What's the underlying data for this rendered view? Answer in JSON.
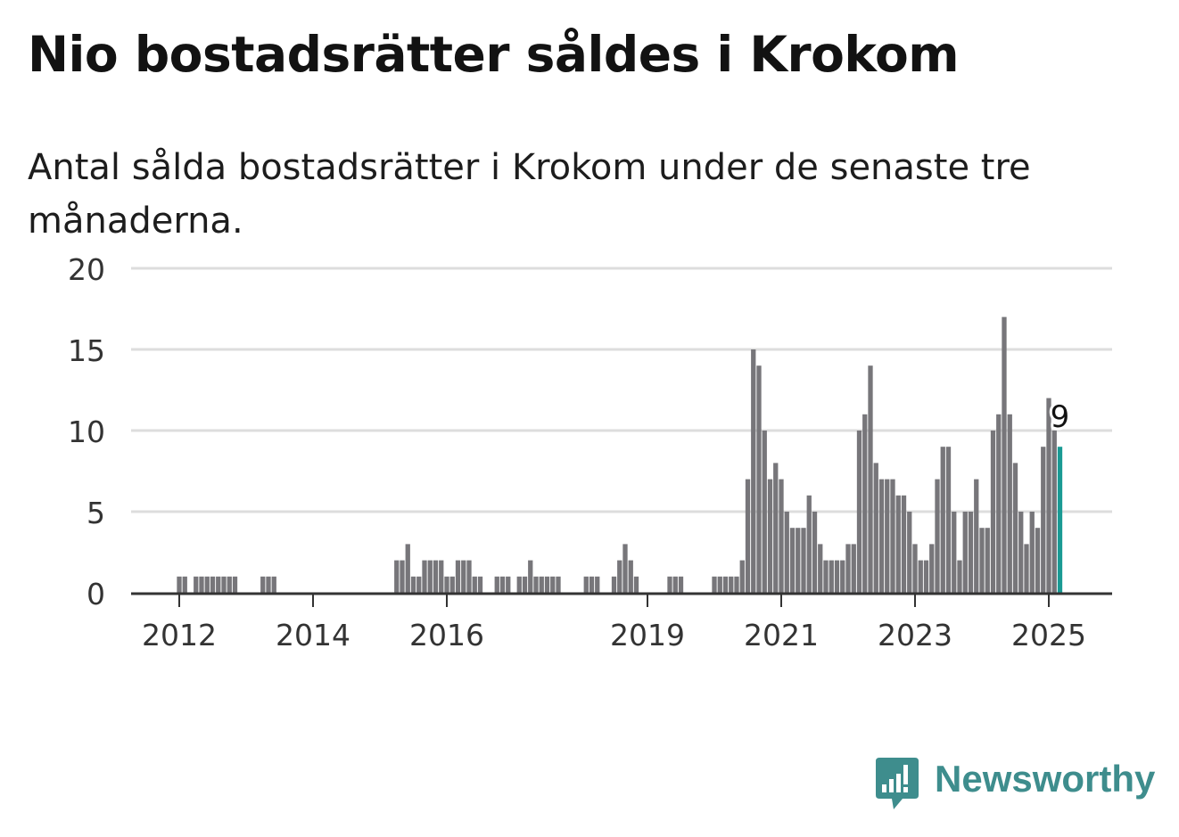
{
  "title": "Nio bostadsrätter såldes i Krokom",
  "subtitle": "Antal sålda bostadsrätter i Krokom under de senaste tre månaderna.",
  "brand": {
    "name": "Newsworthy",
    "icon": "newsworthy-logo-icon",
    "color": "#3e8d8d"
  },
  "colors": {
    "bar": "#77767a",
    "highlight": "#1a9a94",
    "grid": "#dddddd",
    "axis": "#333333"
  },
  "chart_data": {
    "type": "bar",
    "title": "Nio bostadsrätter såldes i Krokom",
    "xlabel": "",
    "ylabel": "",
    "ylim": [
      0,
      20
    ],
    "y_ticks": [
      "0",
      "5",
      "10",
      "15",
      "20"
    ],
    "x_ticks": [
      {
        "date": "2012-01",
        "label": "2012"
      },
      {
        "date": "2014-01",
        "label": "2014"
      },
      {
        "date": "2016-01",
        "label": "2016"
      },
      {
        "date": "2019-01",
        "label": "2019"
      },
      {
        "date": "2021-01",
        "label": "2021"
      },
      {
        "date": "2023-01",
        "label": "2023"
      },
      {
        "date": "2025-01",
        "label": "2025"
      }
    ],
    "grid": true,
    "highlight": {
      "date": "2025-03",
      "value": 9,
      "label": "9"
    },
    "series": [
      {
        "data": [
          [
            "2011-11",
            0
          ],
          [
            "2011-12",
            0
          ],
          [
            "2012-01",
            1
          ],
          [
            "2012-02",
            1
          ],
          [
            "2012-03",
            0
          ],
          [
            "2012-04",
            1
          ],
          [
            "2012-05",
            1
          ],
          [
            "2012-06",
            1
          ],
          [
            "2012-07",
            1
          ],
          [
            "2012-08",
            1
          ],
          [
            "2012-09",
            1
          ],
          [
            "2012-10",
            1
          ],
          [
            "2012-11",
            1
          ],
          [
            "2012-12",
            0
          ],
          [
            "2013-01",
            0
          ],
          [
            "2013-02",
            0
          ],
          [
            "2013-03",
            0
          ],
          [
            "2013-04",
            1
          ],
          [
            "2013-05",
            1
          ],
          [
            "2013-06",
            1
          ],
          [
            "2013-07",
            0
          ],
          [
            "2013-08",
            0
          ],
          [
            "2013-09",
            0
          ],
          [
            "2013-10",
            0
          ],
          [
            "2013-11",
            0
          ],
          [
            "2013-12",
            0
          ],
          [
            "2014-01",
            0
          ],
          [
            "2014-02",
            0
          ],
          [
            "2014-03",
            0
          ],
          [
            "2014-04",
            0
          ],
          [
            "2014-05",
            0
          ],
          [
            "2014-06",
            0
          ],
          [
            "2014-07",
            0
          ],
          [
            "2014-08",
            0
          ],
          [
            "2014-09",
            0
          ],
          [
            "2014-10",
            0
          ],
          [
            "2014-11",
            0
          ],
          [
            "2014-12",
            0
          ],
          [
            "2015-01",
            0
          ],
          [
            "2015-02",
            0
          ],
          [
            "2015-03",
            0
          ],
          [
            "2015-04",
            2
          ],
          [
            "2015-05",
            2
          ],
          [
            "2015-06",
            3
          ],
          [
            "2015-07",
            1
          ],
          [
            "2015-08",
            1
          ],
          [
            "2015-09",
            2
          ],
          [
            "2015-10",
            2
          ],
          [
            "2015-11",
            2
          ],
          [
            "2015-12",
            2
          ],
          [
            "2016-01",
            1
          ],
          [
            "2016-02",
            1
          ],
          [
            "2016-03",
            2
          ],
          [
            "2016-04",
            2
          ],
          [
            "2016-05",
            2
          ],
          [
            "2016-06",
            1
          ],
          [
            "2016-07",
            1
          ],
          [
            "2016-08",
            0
          ],
          [
            "2016-09",
            0
          ],
          [
            "2016-10",
            1
          ],
          [
            "2016-11",
            1
          ],
          [
            "2016-12",
            1
          ],
          [
            "2017-01",
            0
          ],
          [
            "2017-02",
            1
          ],
          [
            "2017-03",
            1
          ],
          [
            "2017-04",
            2
          ],
          [
            "2017-05",
            1
          ],
          [
            "2017-06",
            1
          ],
          [
            "2017-07",
            1
          ],
          [
            "2017-08",
            1
          ],
          [
            "2017-09",
            1
          ],
          [
            "2017-10",
            0
          ],
          [
            "2017-11",
            0
          ],
          [
            "2017-12",
            0
          ],
          [
            "2018-01",
            0
          ],
          [
            "2018-02",
            1
          ],
          [
            "2018-03",
            1
          ],
          [
            "2018-04",
            1
          ],
          [
            "2018-05",
            0
          ],
          [
            "2018-06",
            0
          ],
          [
            "2018-07",
            1
          ],
          [
            "2018-08",
            2
          ],
          [
            "2018-09",
            3
          ],
          [
            "2018-10",
            2
          ],
          [
            "2018-11",
            1
          ],
          [
            "2018-12",
            0
          ],
          [
            "2019-01",
            0
          ],
          [
            "2019-02",
            0
          ],
          [
            "2019-03",
            0
          ],
          [
            "2019-04",
            0
          ],
          [
            "2019-05",
            1
          ],
          [
            "2019-06",
            1
          ],
          [
            "2019-07",
            1
          ],
          [
            "2019-08",
            0
          ],
          [
            "2019-09",
            0
          ],
          [
            "2019-10",
            0
          ],
          [
            "2019-11",
            0
          ],
          [
            "2019-12",
            0
          ],
          [
            "2020-01",
            1
          ],
          [
            "2020-02",
            1
          ],
          [
            "2020-03",
            1
          ],
          [
            "2020-04",
            1
          ],
          [
            "2020-05",
            1
          ],
          [
            "2020-06",
            2
          ],
          [
            "2020-07",
            7
          ],
          [
            "2020-08",
            15
          ],
          [
            "2020-09",
            14
          ],
          [
            "2020-10",
            10
          ],
          [
            "2020-11",
            7
          ],
          [
            "2020-12",
            8
          ],
          [
            "2021-01",
            7
          ],
          [
            "2021-02",
            5
          ],
          [
            "2021-03",
            4
          ],
          [
            "2021-04",
            4
          ],
          [
            "2021-05",
            4
          ],
          [
            "2021-06",
            6
          ],
          [
            "2021-07",
            5
          ],
          [
            "2021-08",
            3
          ],
          [
            "2021-09",
            2
          ],
          [
            "2021-10",
            2
          ],
          [
            "2021-11",
            2
          ],
          [
            "2021-12",
            2
          ],
          [
            "2022-01",
            3
          ],
          [
            "2022-02",
            3
          ],
          [
            "2022-03",
            10
          ],
          [
            "2022-04",
            11
          ],
          [
            "2022-05",
            14
          ],
          [
            "2022-06",
            8
          ],
          [
            "2022-07",
            7
          ],
          [
            "2022-08",
            7
          ],
          [
            "2022-09",
            7
          ],
          [
            "2022-10",
            6
          ],
          [
            "2022-11",
            6
          ],
          [
            "2022-12",
            5
          ],
          [
            "2023-01",
            3
          ],
          [
            "2023-02",
            2
          ],
          [
            "2023-03",
            2
          ],
          [
            "2023-04",
            3
          ],
          [
            "2023-05",
            7
          ],
          [
            "2023-06",
            9
          ],
          [
            "2023-07",
            9
          ],
          [
            "2023-08",
            5
          ],
          [
            "2023-09",
            2
          ],
          [
            "2023-10",
            5
          ],
          [
            "2023-11",
            5
          ],
          [
            "2023-12",
            7
          ],
          [
            "2024-01",
            4
          ],
          [
            "2024-02",
            4
          ],
          [
            "2024-03",
            10
          ],
          [
            "2024-04",
            11
          ],
          [
            "2024-05",
            17
          ],
          [
            "2024-06",
            11
          ],
          [
            "2024-07",
            8
          ],
          [
            "2024-08",
            5
          ],
          [
            "2024-09",
            3
          ],
          [
            "2024-10",
            5
          ],
          [
            "2024-11",
            4
          ],
          [
            "2024-12",
            9
          ],
          [
            "2025-01",
            12
          ],
          [
            "2025-02",
            10
          ],
          [
            "2025-03",
            9
          ]
        ]
      }
    ]
  }
}
